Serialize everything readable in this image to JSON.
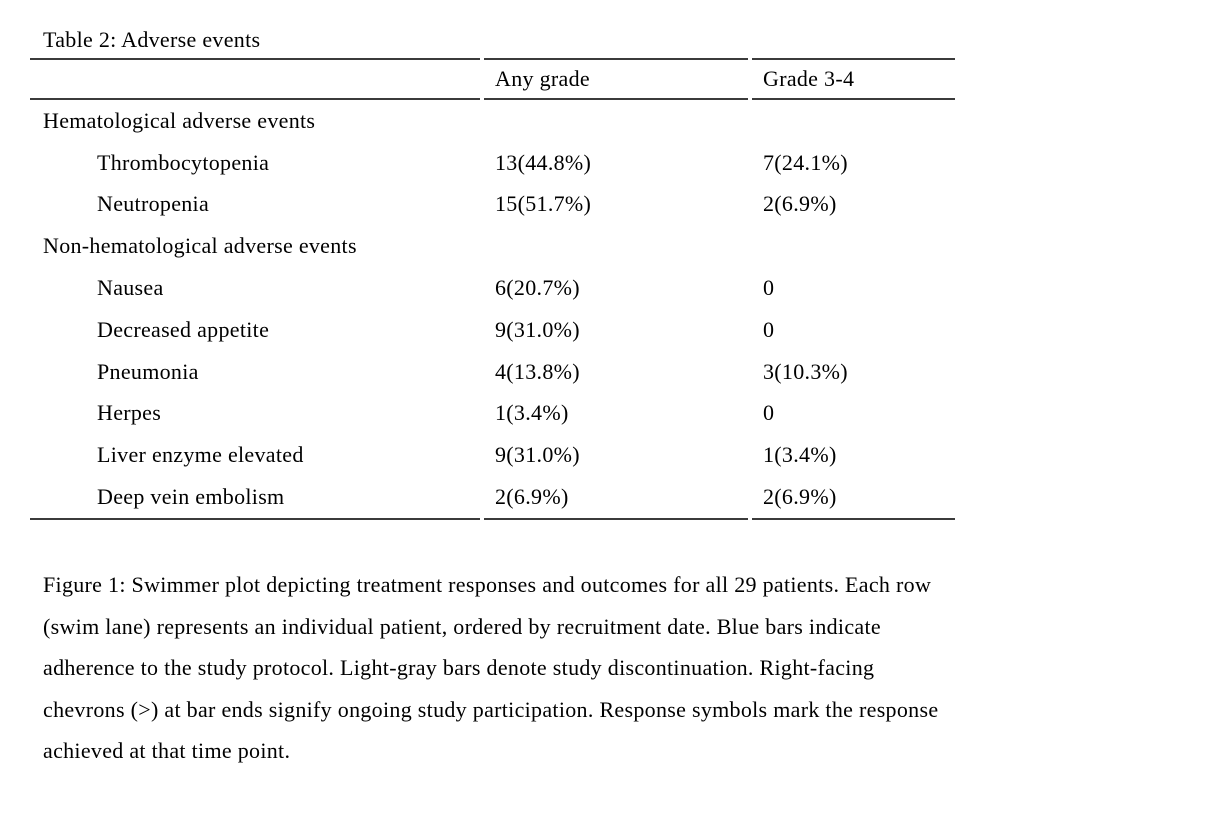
{
  "page": {
    "background": "#ffffff",
    "text_color": "#000000",
    "rule_color": "#3b3b3b"
  },
  "table": {
    "title": "Table 2: Adverse events",
    "columns": [
      "",
      "Any grade",
      "Grade 3-4"
    ],
    "rows": [
      {
        "type": "category",
        "label": "Hematological adverse events",
        "any_grade": "",
        "grade_3_4": ""
      },
      {
        "type": "item",
        "label": "Thrombocytopenia",
        "any_grade": "13(44.8%)",
        "grade_3_4": "7(24.1%)"
      },
      {
        "type": "item",
        "label": "Neutropenia",
        "any_grade": "15(51.7%)",
        "grade_3_4": "2(6.9%)"
      },
      {
        "type": "category",
        "label": "Non-hematological adverse events",
        "any_grade": "",
        "grade_3_4": ""
      },
      {
        "type": "item",
        "label": "Nausea",
        "any_grade": "6(20.7%)",
        "grade_3_4": "0"
      },
      {
        "type": "item",
        "label": "Decreased appetite",
        "any_grade": "9(31.0%)",
        "grade_3_4": "0"
      },
      {
        "type": "item",
        "label": "Pneumonia",
        "any_grade": "4(13.8%)",
        "grade_3_4": "3(10.3%)"
      },
      {
        "type": "item",
        "label": "Herpes",
        "any_grade": "1(3.4%)",
        "grade_3_4": "0"
      },
      {
        "type": "item",
        "label": "Liver enzyme elevated",
        "any_grade": "9(31.0%)",
        "grade_3_4": "1(3.4%)"
      },
      {
        "type": "item",
        "label": "Deep vein embolism",
        "any_grade": "2(6.9%)",
        "grade_3_4": "2(6.9%)"
      }
    ]
  },
  "figure_caption": {
    "lines": [
      "Figure 1: Swimmer plot depicting treatment responses and outcomes for all 29 patients. Each row",
      "(swim lane) represents an individual patient, ordered by recruitment date. Blue bars indicate",
      "adherence to the study protocol. Light-gray bars denote study discontinuation. Right-facing",
      "chevrons (>) at bar ends signify ongoing study participation. Response symbols mark the response",
      "achieved at that time point."
    ],
    "text": "Figure 1: Swimmer plot depicting treatment responses and outcomes for all 29 patients. Each row (swim lane) represents an individual patient, ordered by recruitment date. Blue bars indicate adherence to the study protocol. Light-gray bars denote study discontinuation. Right-facing chevrons (>) at bar ends signify ongoing study participation. Response symbols mark the response achieved at that time point."
  }
}
